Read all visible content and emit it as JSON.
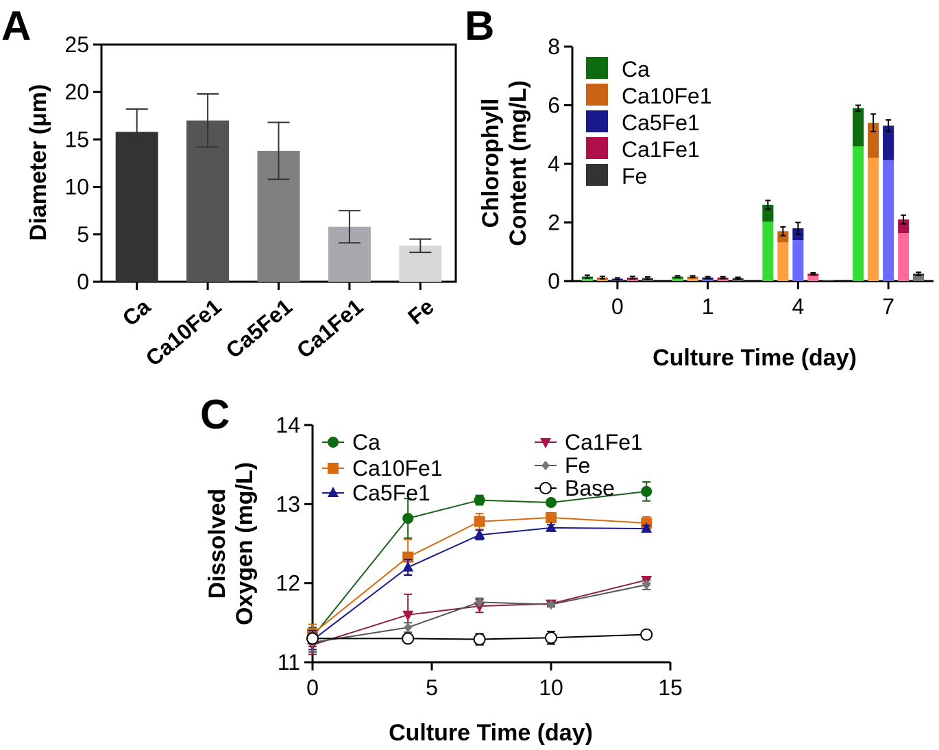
{
  "colors": {
    "Ca": "#0f6b0f",
    "Ca10Fe1": "#e07818",
    "Ca5Fe1": "#1a1a8c",
    "Ca1Fe1": "#b0104a",
    "Fe": "#333333",
    "Base": "#000000"
  },
  "chart_data": [
    {
      "panel": "A",
      "type": "bar",
      "ylabel": "Diameter (μm)",
      "xlabel": "",
      "ylim": [
        0,
        25
      ],
      "yticks": [
        "0",
        "5",
        "10",
        "15",
        "20",
        "25"
      ],
      "categories": [
        "Ca",
        "Ca10Fe1",
        "Ca5Fe1",
        "Ca1Fe1",
        "Fe"
      ],
      "values": [
        15.8,
        17.0,
        13.8,
        5.8,
        3.8
      ],
      "errors": [
        2.4,
        2.8,
        3.0,
        1.7,
        0.7
      ],
      "bar_colors": [
        "#333333",
        "#555555",
        "#808080",
        "#a8a8ae",
        "#d8d8d8"
      ],
      "grid": false
    },
    {
      "panel": "B",
      "type": "bar",
      "ylabel_lines": [
        "Chlorophyll",
        "Content (mg/L)"
      ],
      "xlabel": "Culture Time (day)",
      "ylim": [
        0,
        8
      ],
      "yticks": [
        "0",
        "2",
        "4",
        "6",
        "8"
      ],
      "categories": [
        "0",
        "1",
        "4",
        "7"
      ],
      "legend_position": "top-left",
      "series": [
        {
          "name": "Ca",
          "values": [
            0.15,
            0.15,
            2.6,
            5.9
          ],
          "errors": [
            0.05,
            0.03,
            0.15,
            0.1
          ],
          "light": "#33dd33",
          "dark": "#0f6b0f"
        },
        {
          "name": "Ca10Fe1",
          "values": [
            0.12,
            0.15,
            1.7,
            5.4
          ],
          "errors": [
            0.04,
            0.03,
            0.15,
            0.3
          ],
          "light": "#ffa040",
          "dark": "#c86414"
        },
        {
          "name": "Ca5Fe1",
          "values": [
            0.08,
            0.12,
            1.8,
            5.3
          ],
          "errors": [
            0.03,
            0.03,
            0.2,
            0.2
          ],
          "light": "#6a6aff",
          "dark": "#1a1a8c"
        },
        {
          "name": "Ca1Fe1",
          "values": [
            0.12,
            0.12,
            0.25,
            2.1
          ],
          "errors": [
            0.04,
            0.03,
            0.03,
            0.15
          ],
          "light": "#ff6a9a",
          "dark": "#b0104a"
        },
        {
          "name": "Fe",
          "values": [
            0.1,
            0.1,
            0.03,
            0.25
          ],
          "errors": [
            0.04,
            0.03,
            0.01,
            0.05
          ],
          "light": "#777777",
          "dark": "#333333"
        }
      ],
      "grid": false
    },
    {
      "panel": "C",
      "type": "line",
      "ylabel_lines": [
        "Dissolved",
        "Oxygen (mg/L)"
      ],
      "xlabel": "Culture Time (day)",
      "xlim": [
        0,
        15
      ],
      "ylim": [
        11,
        14
      ],
      "xticks": [
        "0",
        "5",
        "10",
        "15"
      ],
      "yticks": [
        "11",
        "12",
        "13",
        "14"
      ],
      "x": [
        0,
        4,
        7,
        10,
        14
      ],
      "legend_position": "top",
      "series": [
        {
          "name": "Ca",
          "marker": "circle",
          "values": [
            11.32,
            12.82,
            13.05,
            13.02,
            13.16
          ],
          "errors": [
            0.12,
            0.25,
            0.06,
            0.03,
            0.12
          ]
        },
        {
          "name": "Ca10Fe1",
          "marker": "square",
          "values": [
            11.36,
            12.33,
            12.78,
            12.83,
            12.76
          ],
          "errors": [
            0.12,
            0.22,
            0.1,
            0.05,
            0.08
          ]
        },
        {
          "name": "Ca5Fe1",
          "marker": "triangle-up",
          "values": [
            11.28,
            12.2,
            12.61,
            12.7,
            12.69
          ],
          "errors": [
            0.12,
            0.1,
            0.06,
            0.04,
            0.04
          ]
        },
        {
          "name": "Ca1Fe1",
          "marker": "triangle-down",
          "values": [
            11.22,
            11.6,
            11.71,
            11.74,
            12.04
          ],
          "errors": [
            0.12,
            0.26,
            0.08,
            0.03,
            0.04
          ]
        },
        {
          "name": "Fe",
          "marker": "diamond",
          "values": [
            11.25,
            11.44,
            11.76,
            11.73,
            11.98
          ],
          "errors": [
            0.12,
            0.06,
            0.05,
            0.03,
            0.06
          ]
        },
        {
          "name": "Base",
          "marker": "open-circle",
          "values": [
            11.3,
            11.3,
            11.29,
            11.31,
            11.35
          ],
          "errors": [
            0.05,
            0.04,
            0.07,
            0.08,
            0.05
          ]
        }
      ],
      "grid": false
    }
  ],
  "panels": {
    "a_letter": "A",
    "b_letter": "B",
    "c_letter": "C"
  }
}
